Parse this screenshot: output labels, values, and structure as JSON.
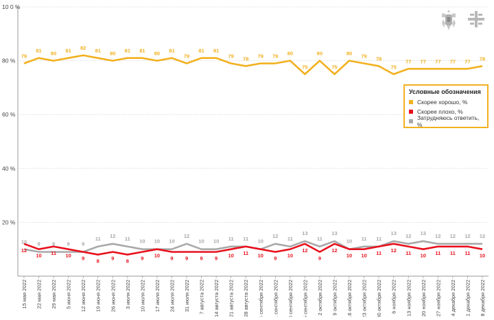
{
  "chart_data": {
    "type": "line",
    "y_ticks": [
      "10 0 %",
      "80 %",
      "60 %",
      "40 %",
      "20 %"
    ],
    "y_tick_values": [
      100,
      80,
      60,
      40,
      20
    ],
    "ylim": [
      0,
      100
    ],
    "categories": [
      "15 мая 2022",
      "22 мая 2022",
      "29 мая 2022",
      "5 июня 2022",
      "12 июня 2022",
      "19 июня 2022",
      "26 июня 2022",
      "3 июля 2022",
      "10 июля 2022",
      "17 июля 2022",
      "24 июля 2022",
      "31 июля 2022",
      "7 августа 2022",
      "14 августа 2022",
      "21 августа 2022",
      "28 августа 2022",
      "4 сентября 2022",
      "11 сентября 2022",
      "18 сентября 2022",
      "25 сентября 2022",
      "2 октября 2022",
      "9 октября 2022",
      "16 октября 2022",
      "23 октября 2022",
      "30 октября 2022",
      "6 ноября 2022",
      "13 ноября 2022",
      "20 ноября 2022",
      "27 ноября 2022",
      "4 декабря 2022",
      "11 декабря 2022",
      "18 декабря 2022"
    ],
    "series": [
      {
        "name": "Скорее хорошо, %",
        "color": "#f2b01e",
        "values": [
          79,
          81,
          80,
          81,
          82,
          81,
          80,
          81,
          81,
          80,
          81,
          79,
          81,
          81,
          79,
          78,
          79,
          79,
          80,
          75,
          80,
          75,
          80,
          79,
          78,
          75,
          77,
          77,
          77,
          77,
          77,
          78
        ]
      },
      {
        "name": "Скорее плохо, %",
        "color": "#e8101c",
        "values": [
          12,
          10,
          11,
          10,
          9,
          8,
          9,
          8,
          9,
          10,
          9,
          9,
          9,
          9,
          10,
          11,
          10,
          9,
          10,
          12,
          9,
          12,
          10,
          10,
          11,
          12,
          11,
          10,
          11,
          11,
          11,
          10
        ]
      },
      {
        "name": "Затрудняюсь ответить, %",
        "color": "#a8a8a8",
        "values": [
          10,
          9,
          9,
          9,
          9,
          11,
          12,
          11,
          10,
          10,
          10,
          12,
          10,
          10,
          11,
          11,
          10,
          12,
          11,
          13,
          11,
          13,
          10,
          11,
          11,
          13,
          12,
          13,
          12,
          12,
          12,
          12
        ]
      }
    ],
    "legend": {
      "title": "Условные обозначения",
      "position": "right"
    },
    "grid": "horizontal-dashed"
  },
  "logos": [
    "emblem-icon",
    "cross-logo-icon"
  ]
}
